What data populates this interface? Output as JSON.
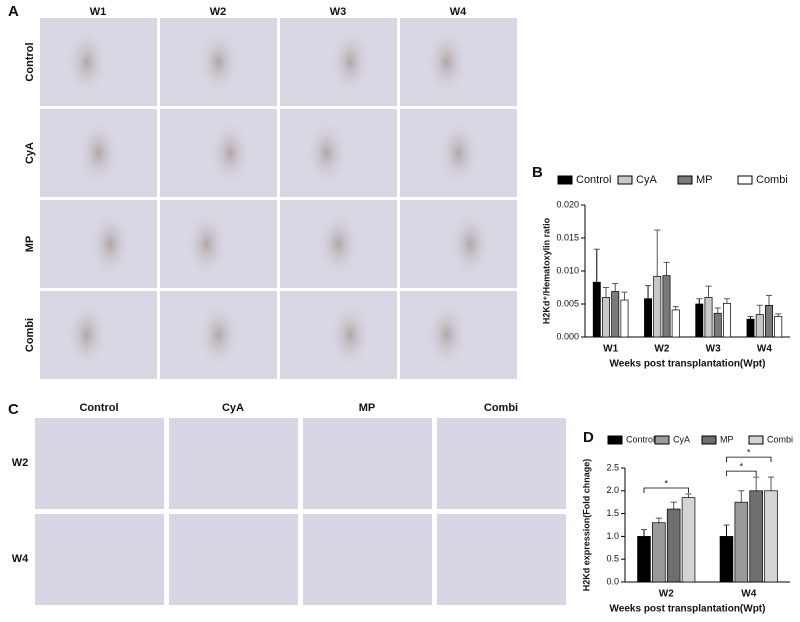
{
  "panel_a": {
    "label": "A",
    "columns": [
      "W1",
      "W2",
      "W3",
      "W4"
    ],
    "rows": [
      "Control",
      "CyA",
      "MP",
      "Combi"
    ]
  },
  "panel_c": {
    "label": "C",
    "columns": [
      "Control",
      "CyA",
      "MP",
      "Combi"
    ],
    "rows": [
      "W2",
      "W4"
    ]
  },
  "chart_data": [
    {
      "type": "bar",
      "label": "B",
      "y_label": "H2Kd⁺/Hematoxylin ratio",
      "x_label": "Weeks post transplantation(Wpt)",
      "categories": [
        "W1",
        "W2",
        "W3",
        "W4"
      ],
      "series": [
        {
          "name": "Control",
          "color": "#000000",
          "values": [
            0.0083,
            0.0058,
            0.005,
            0.0027
          ],
          "errors": [
            0.005,
            0.002,
            0.0008,
            0.0004
          ]
        },
        {
          "name": "CyA",
          "color": "#c8c8c8",
          "values": [
            0.006,
            0.0092,
            0.006,
            0.0034
          ],
          "errors": [
            0.0015,
            0.007,
            0.0017,
            0.0014
          ]
        },
        {
          "name": "MP",
          "color": "#7a7a7a",
          "values": [
            0.0069,
            0.0093,
            0.0036,
            0.0048
          ],
          "errors": [
            0.0012,
            0.002,
            0.0008,
            0.0015
          ]
        },
        {
          "name": "Combi",
          "color": "#ffffff",
          "values": [
            0.0056,
            0.0041,
            0.0051,
            0.0031
          ],
          "errors": [
            0.0012,
            0.0005,
            0.0007,
            0.0004
          ]
        }
      ],
      "ylim": [
        0,
        0.02
      ],
      "yticks": [
        {
          "value": 0,
          "label": "0.000"
        },
        {
          "value": 0.005,
          "label": "0.005"
        },
        {
          "value": 0.01,
          "label": "0.010"
        },
        {
          "value": 0.015,
          "label": "0.015"
        },
        {
          "value": 0.02,
          "label": "0.020"
        }
      ]
    },
    {
      "type": "bar",
      "label": "D",
      "y_label": "H2Kd expression(Fold chnage)",
      "x_label": "Weeks post transplantation(Wpt)",
      "categories": [
        "W2",
        "W4"
      ],
      "series": [
        {
          "name": "Control",
          "color": "#000000",
          "values": [
            1.0,
            1.0
          ],
          "errors": [
            0.15,
            0.25
          ]
        },
        {
          "name": "CyA",
          "color": "#9a9a9a",
          "values": [
            1.3,
            1.75
          ],
          "errors": [
            0.1,
            0.25
          ]
        },
        {
          "name": "MP",
          "color": "#6e6e6e",
          "values": [
            1.6,
            2.0
          ],
          "errors": [
            0.15,
            0.3
          ]
        },
        {
          "name": "Combi",
          "color": "#d4d4d4",
          "values": [
            1.85,
            2.0
          ],
          "errors": [
            0.08,
            0.3
          ]
        }
      ],
      "annotations": [
        "*",
        "*",
        "*"
      ],
      "ylim": [
        0,
        2.5
      ],
      "yticks": [
        {
          "value": 0,
          "label": "0.0"
        },
        {
          "value": 0.5,
          "label": "0.5"
        },
        {
          "value": 1,
          "label": "1.0"
        },
        {
          "value": 1.5,
          "label": "1.5"
        },
        {
          "value": 2,
          "label": "2.0"
        },
        {
          "value": 2.5,
          "label": "2.5"
        }
      ]
    }
  ]
}
